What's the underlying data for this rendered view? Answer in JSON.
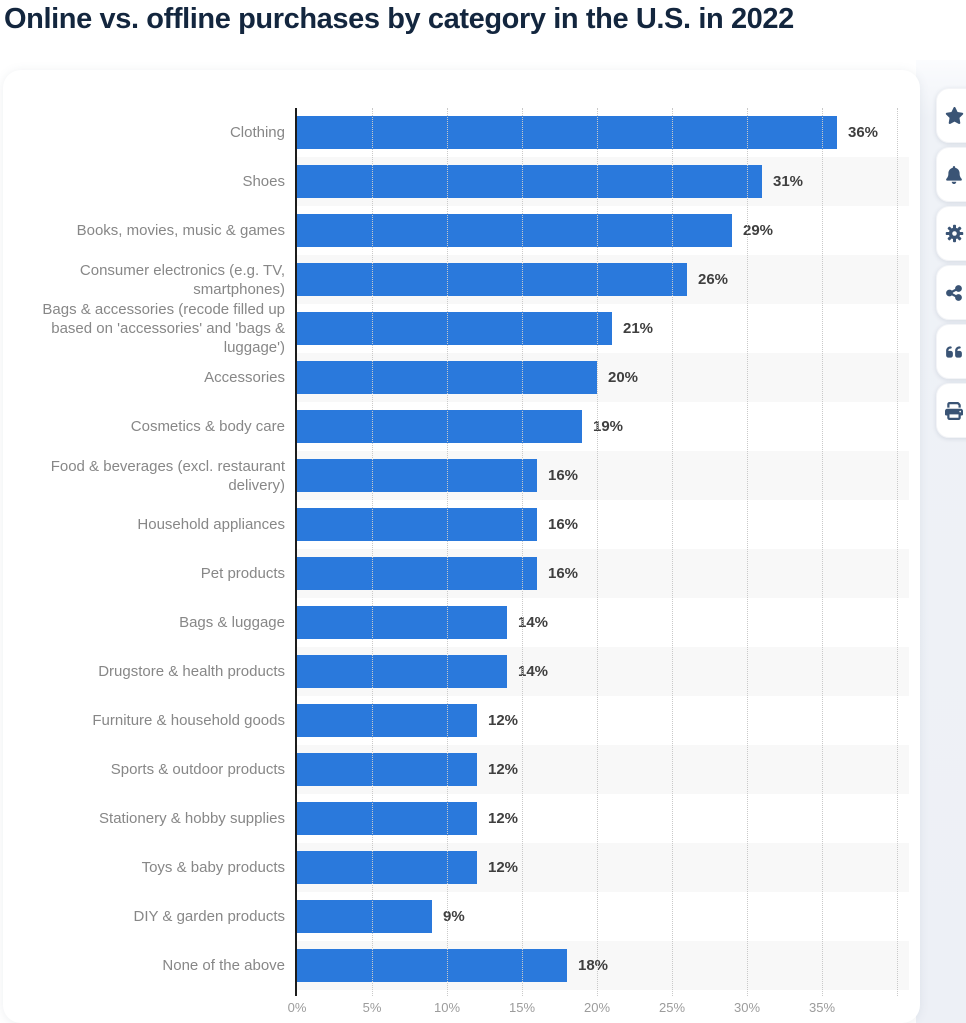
{
  "page": {
    "title": "Online vs. offline purchases by category in the U.S. in 2022"
  },
  "toolbar": {
    "buttons": [
      {
        "name": "favorite-button",
        "icon": "star-icon"
      },
      {
        "name": "notification-button",
        "icon": "bell-icon"
      },
      {
        "name": "settings-button",
        "icon": "gear-icon"
      },
      {
        "name": "share-button",
        "icon": "share-icon"
      },
      {
        "name": "cite-button",
        "icon": "quote-icon"
      },
      {
        "name": "print-button",
        "icon": "printer-icon"
      }
    ]
  },
  "chart_data": {
    "type": "bar",
    "orientation": "horizontal",
    "title": "Online vs. offline purchases by category in the U.S. in 2022",
    "unit": "%",
    "categories": [
      "Clothing",
      "Shoes",
      "Books, movies, music & games",
      "Consumer electronics (e.g. TV,\nsmartphones)",
      "Bags & accessories (recode filled up\nbased on 'accessories' and 'bags &\nluggage')",
      "Accessories",
      "Cosmetics & body care",
      "Food & beverages (excl. restaurant\ndelivery)",
      "Household appliances",
      "Pet products",
      "Bags & luggage",
      "Drugstore & health products",
      "Furniture & household goods",
      "Sports & outdoor products",
      "Stationery & hobby supplies",
      "Toys & baby products",
      "DIY & garden products",
      "None of the above"
    ],
    "values": [
      36,
      31,
      29,
      26,
      21,
      20,
      19,
      16,
      16,
      16,
      14,
      14,
      12,
      12,
      12,
      12,
      9,
      18
    ],
    "x_ticks": [
      "0%",
      "5%",
      "10%",
      "15%",
      "20%",
      "25%",
      "30%",
      "35%"
    ],
    "xlim": [
      0,
      40.8
    ],
    "grid": "vertical dotted gridlines every 5%, extending to 40%",
    "legend": "none",
    "bar_color": "#2a79dc",
    "row_stripe_color": "#f8f8f8"
  },
  "colors": {
    "title": "#13263e",
    "bar": "#2a79dc",
    "icon": "#3a5475",
    "category_label": "#878787",
    "value_label": "#3f3f3f",
    "tick_label": "#9c9c9c",
    "axis_line": "#1c1c1c"
  }
}
